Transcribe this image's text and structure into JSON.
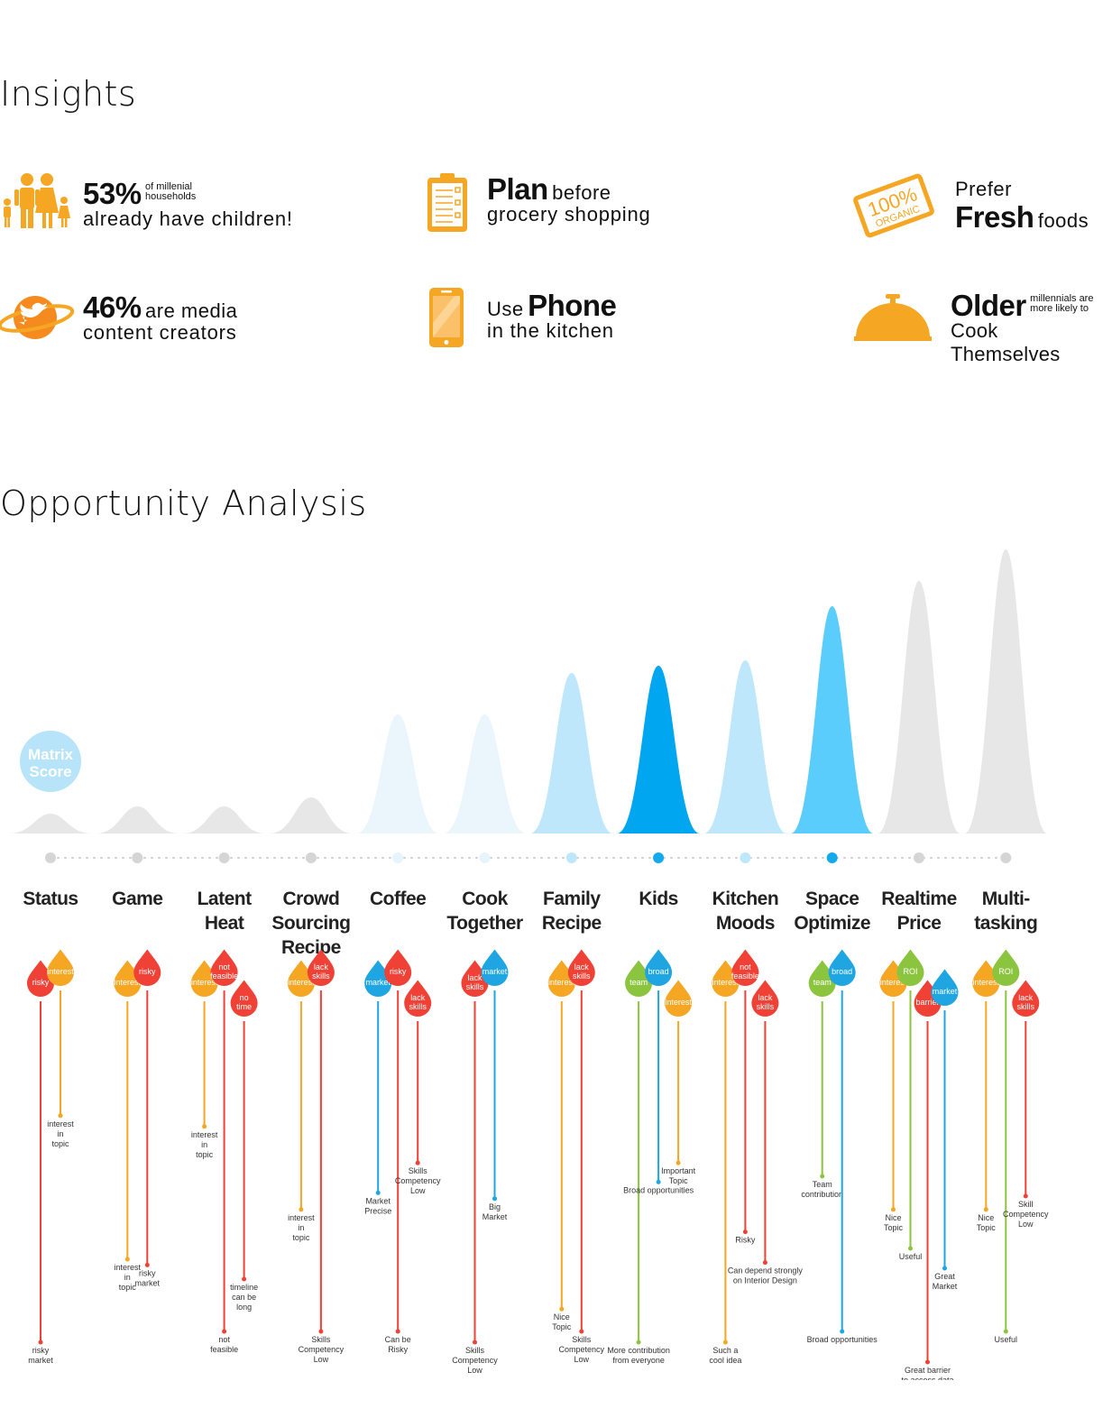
{
  "sections": {
    "insights_title": "Insights",
    "opportunity_title": "Opportunity Analysis"
  },
  "insights": {
    "children": {
      "big": "53%",
      "small_1": "of millenial",
      "small_2": "households",
      "line2": "already have children!"
    },
    "plan": {
      "big": "Plan",
      "mid": "before",
      "line2": "grocery shopping"
    },
    "fresh": {
      "line1": "Prefer",
      "big": "Fresh",
      "mid": "foods",
      "badge_1": "100%",
      "badge_2": "ORGANIC"
    },
    "media": {
      "big": "46%",
      "mid": "are media",
      "line2": "content creators"
    },
    "phone": {
      "mid": "Use",
      "big": "Phone",
      "line2": "in the kitchen"
    },
    "older": {
      "big": "Older",
      "small_1": "millennials are",
      "small_2": "more likely to",
      "line2": "Cook Themselves"
    }
  },
  "colors": {
    "orange": "#f5a623",
    "gray": "#e7e7e7",
    "light_blue": "#eaf5fc",
    "mid_blue": "#bfe7fb",
    "bright_blue": "#5bcdfd",
    "deep_blue": "#00a6ef",
    "red": "#ef4136",
    "amber": "#f5a623",
    "blue": "#1ea5e2",
    "green": "#8bc53f"
  },
  "chart_data": {
    "type": "area",
    "title": "",
    "badge": [
      "Matrix",
      "Score"
    ],
    "categories": [
      {
        "label": [
          "Status"
        ],
        "score": 22,
        "fill": "gray"
      },
      {
        "label": [
          "Game"
        ],
        "score": 30,
        "fill": "gray"
      },
      {
        "label": [
          "Latent",
          "Heat"
        ],
        "score": 30,
        "fill": "gray"
      },
      {
        "label": [
          "Crowd",
          "Sourcing",
          "Recipe"
        ],
        "score": 40,
        "fill": "gray"
      },
      {
        "label": [
          "Coffee"
        ],
        "score": 132,
        "fill": "light_blue"
      },
      {
        "label": [
          "Cook",
          "Together"
        ],
        "score": 132,
        "fill": "light_blue"
      },
      {
        "label": [
          "Family",
          "Recipe"
        ],
        "score": 178,
        "fill": "mid_blue"
      },
      {
        "label": [
          "Kids"
        ],
        "score": 186,
        "fill": "deep_blue"
      },
      {
        "label": [
          "Kitchen",
          "Moods"
        ],
        "score": 192,
        "fill": "mid_blue"
      },
      {
        "label": [
          "Space",
          "Optimize"
        ],
        "score": 252,
        "fill": "bright_blue"
      },
      {
        "label": [
          "Realtime",
          "Price"
        ],
        "score": 280,
        "fill": "gray"
      },
      {
        "label": [
          "Multi-",
          "tasking"
        ],
        "score": 315,
        "fill": "gray"
      }
    ],
    "factors": [
      [
        {
          "tag": [
            "risky"
          ],
          "color": "red",
          "note": [
            "risky",
            "market"
          ],
          "len": 1
        },
        {
          "tag": [
            "interest"
          ],
          "color": "amber",
          "note": [
            "interest",
            "in",
            "topic"
          ],
          "len": 0.35
        }
      ],
      [
        {
          "tag": [
            "interest"
          ],
          "color": "amber",
          "note": [
            "interest",
            "in",
            "topic"
          ],
          "len": 0.75
        },
        {
          "tag": [
            "risky"
          ],
          "color": "red",
          "note": [
            "risky",
            "market"
          ],
          "len": 0.8
        }
      ],
      [
        {
          "tag": [
            "interest"
          ],
          "color": "amber",
          "note": [
            "interest",
            "in",
            "topic"
          ],
          "len": 0.35
        },
        {
          "tag": [
            "not",
            "feasible"
          ],
          "color": "red",
          "note": [
            "not",
            "feasible"
          ],
          "len": 1
        },
        {
          "tag": [
            "no",
            "time"
          ],
          "color": "red",
          "note": [
            "timeline",
            "can be",
            "long"
          ],
          "len": 0.75
        }
      ],
      [
        {
          "tag": [
            "interest"
          ],
          "color": "amber",
          "note": [
            "interest",
            "in",
            "topic"
          ],
          "len": 0.6
        },
        {
          "tag": [
            "lack",
            "skills"
          ],
          "color": "red",
          "note": [
            "Skills",
            "Competency",
            "Low"
          ],
          "len": 1
        }
      ],
      [
        {
          "tag": [
            "market"
          ],
          "color": "blue",
          "note": [
            "Market",
            "Precise"
          ],
          "len": 0.55
        },
        {
          "tag": [
            "risky"
          ],
          "color": "red",
          "note": [
            "Can be",
            "Risky"
          ],
          "len": 1
        },
        {
          "tag": [
            "lack",
            "skills"
          ],
          "color": "red",
          "note": [
            "Skills",
            "Competency",
            "Low"
          ],
          "len": 0.4
        }
      ],
      [
        {
          "tag": [
            "lack",
            "skills"
          ],
          "color": "red",
          "note": [
            "Skills",
            "Competency",
            "Low"
          ],
          "len": 1
        },
        {
          "tag": [
            "market"
          ],
          "color": "blue",
          "note": [
            "Big",
            "Market"
          ],
          "len": 0.6
        }
      ],
      [
        {
          "tag": [
            "interest"
          ],
          "color": "amber",
          "note": [
            "Nice",
            "Topic"
          ],
          "len": 0.9
        },
        {
          "tag": [
            "lack",
            "skills"
          ],
          "color": "red",
          "note": [
            "Skills",
            "Competency",
            "Low"
          ],
          "len": 1
        }
      ],
      [
        {
          "tag": [
            "team"
          ],
          "color": "green",
          "note": [
            "More contribution",
            "from everyone"
          ],
          "len": 1
        },
        {
          "tag": [
            "broad"
          ],
          "color": "blue",
          "note": [
            "Broad opportunities"
          ],
          "len": 0.55
        },
        {
          "tag": [
            "interest"
          ],
          "color": "amber",
          "note": [
            "Important",
            "Topic"
          ],
          "len": 0.4
        }
      ],
      [
        {
          "tag": [
            "interest"
          ],
          "color": "amber",
          "note": [
            "Such a",
            "cool idea"
          ],
          "len": 1
        },
        {
          "tag": [
            "not",
            "feasible"
          ],
          "color": "red",
          "note": [
            "Risky"
          ],
          "len": 0.7
        },
        {
          "tag": [
            "lack",
            "skills"
          ],
          "color": "red",
          "note": [
            "Can depend strongly",
            "on Interior Design"
          ],
          "len": 0.7
        }
      ],
      [
        {
          "tag": [
            "team"
          ],
          "color": "green",
          "note": [
            "Team",
            "contribution"
          ],
          "len": 0.5
        },
        {
          "tag": [
            "broad"
          ],
          "color": "blue",
          "note": [
            "Broad opportunities"
          ],
          "len": 1
        }
      ],
      [
        {
          "tag": [
            "interest"
          ],
          "color": "amber",
          "note": [
            "Nice",
            "Topic"
          ],
          "len": 0.6
        },
        {
          "tag": [
            "ROI"
          ],
          "color": "green",
          "note": [
            "Useful"
          ],
          "len": 0.75
        },
        {
          "tag": [
            "barrier"
          ],
          "color": "red",
          "note": [
            "Great barrier",
            "to access data"
          ],
          "len": 1
        },
        {
          "tag": [
            "market"
          ],
          "color": "blue",
          "note": [
            "Great",
            "Market"
          ],
          "len": 0.75
        }
      ],
      [
        {
          "tag": [
            "interest"
          ],
          "color": "amber",
          "note": [
            "Nice",
            "Topic"
          ],
          "len": 0.6
        },
        {
          "tag": [
            "ROI"
          ],
          "color": "green",
          "note": [
            "Useful"
          ],
          "len": 1
        },
        {
          "tag": [
            "lack",
            "skills"
          ],
          "color": "red",
          "note": [
            "Skill",
            "Competency",
            "Low"
          ],
          "len": 0.5
        }
      ]
    ]
  }
}
